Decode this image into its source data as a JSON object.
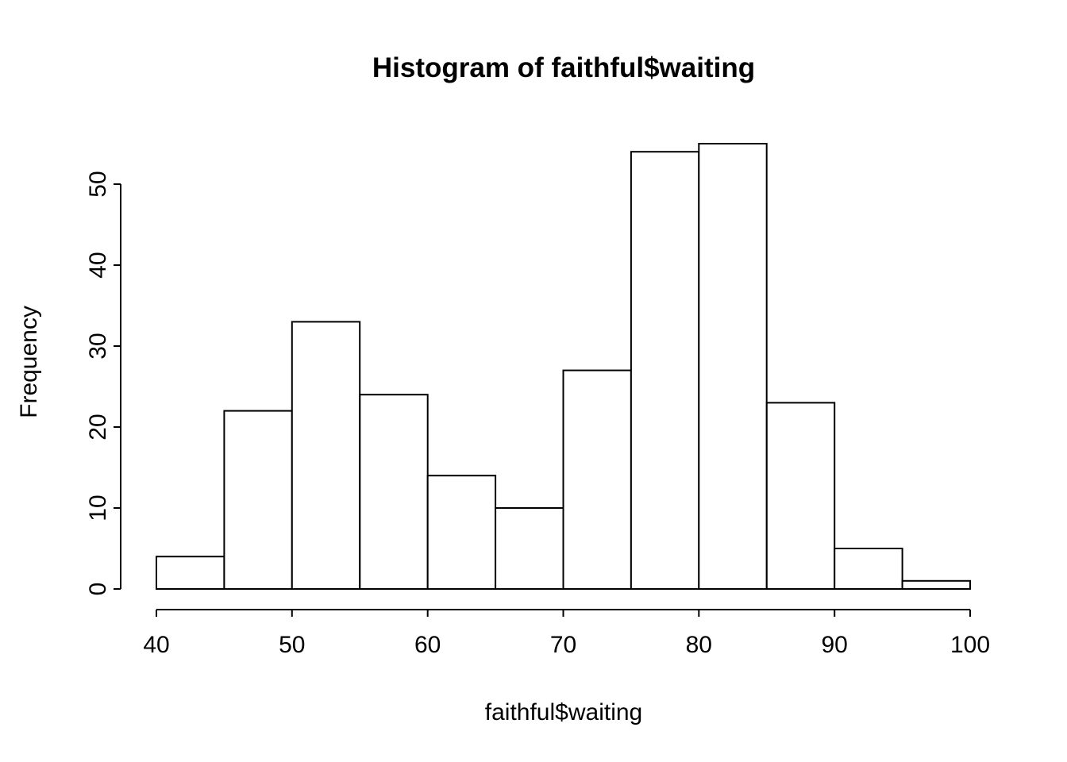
{
  "page": {
    "background": "#ffffff"
  },
  "chart_data": {
    "type": "bar",
    "subtype": "histogram",
    "title": "Histogram of faithful$waiting",
    "xlabel": "faithful$waiting",
    "ylabel": "Frequency",
    "bin_breaks": [
      40,
      45,
      50,
      55,
      60,
      65,
      70,
      75,
      80,
      85,
      90,
      95,
      100
    ],
    "counts": [
      4,
      22,
      33,
      24,
      14,
      10,
      27,
      54,
      55,
      23,
      5,
      1
    ],
    "x_ticks": [
      40,
      50,
      60,
      70,
      80,
      90,
      100
    ],
    "y_ticks": [
      0,
      10,
      20,
      30,
      40,
      50
    ],
    "xlim": [
      40,
      100
    ],
    "ylim": [
      0,
      55
    ],
    "grid": false,
    "legend": "none",
    "bar_fill": "#ffffff",
    "bar_stroke": "#000000",
    "axis_color": "#000000",
    "text_color": "#000000",
    "background": "#ffffff"
  }
}
